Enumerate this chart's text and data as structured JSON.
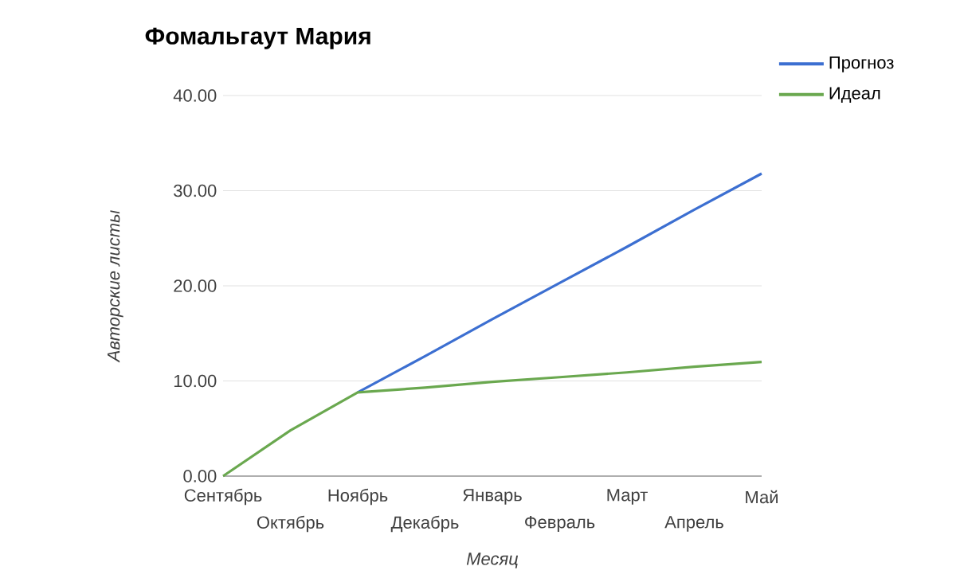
{
  "chart_data": {
    "type": "line",
    "title": "Фомальгаут Мария",
    "xlabel": "Месяц",
    "ylabel": "Авторские листы",
    "categories": [
      "Сентябрь",
      "Октябрь",
      "Ноябрь",
      "Декабрь",
      "Январь",
      "Февраль",
      "Март",
      "Апрель",
      "Май"
    ],
    "series": [
      {
        "name": "Прогноз",
        "color": "#3c6fd1",
        "values": [
          null,
          null,
          8.8,
          12.6,
          16.5,
          20.3,
          24.1,
          28.0,
          31.8
        ]
      },
      {
        "name": "Идеал",
        "color": "#6aa84f",
        "values": [
          0,
          4.8,
          8.8,
          9.3,
          9.9,
          10.4,
          10.9,
          11.5,
          12.0
        ]
      }
    ],
    "ylim": [
      0,
      40
    ],
    "yticks": [
      {
        "value": 0,
        "label": "0.00"
      },
      {
        "value": 10,
        "label": "10.00"
      },
      {
        "value": 20,
        "label": "20.00"
      },
      {
        "value": 30,
        "label": "30.00"
      },
      {
        "value": 40,
        "label": "40.00"
      }
    ],
    "grid": "y",
    "legend": "top right",
    "marker": "none",
    "line_style": "solid"
  }
}
